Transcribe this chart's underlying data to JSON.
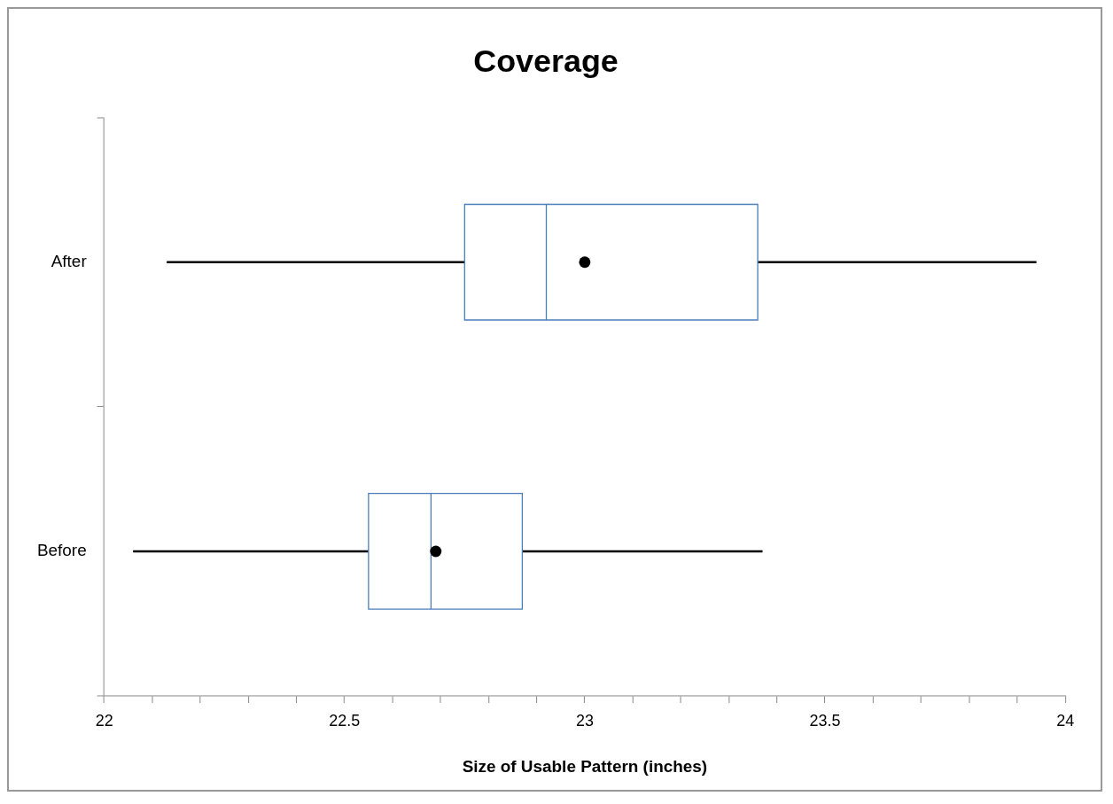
{
  "chart_data": {
    "type": "box",
    "title": "Coverage",
    "xlabel": "Size of Usable Pattern (inches)",
    "orientation": "horizontal",
    "categories": [
      "After",
      "Before"
    ],
    "color": "#4a7ebb",
    "boxes": [
      {
        "low": 22.13,
        "q1": 22.75,
        "median": 22.92,
        "q3": 23.36,
        "high": 23.94,
        "mean": 23.0
      },
      {
        "low": 22.06,
        "q1": 22.55,
        "median": 22.68,
        "q3": 22.87,
        "high": 23.37,
        "mean": 22.69
      }
    ],
    "xlim": [
      22,
      24
    ],
    "xticks": [
      22,
      {
        "value": 22.1,
        "label": null
      },
      {
        "value": 22.2,
        "label": null
      },
      {
        "value": 22.3,
        "label": null
      },
      {
        "value": 22.4,
        "label": null
      },
      22.5,
      {
        "value": 22.6,
        "label": null
      },
      {
        "value": 22.7,
        "label": null
      },
      {
        "value": 22.8,
        "label": null
      },
      {
        "value": 22.9,
        "label": null
      },
      23,
      {
        "value": 23.1,
        "label": null
      },
      {
        "value": 23.2,
        "label": null
      },
      {
        "value": 23.3,
        "label": null
      },
      {
        "value": 23.4,
        "label": null
      },
      23.5,
      {
        "value": 23.6,
        "label": null
      },
      {
        "value": 23.7,
        "label": null
      },
      {
        "value": 23.8,
        "label": null
      },
      {
        "value": 23.9,
        "label": null
      },
      24
    ],
    "grid": false,
    "legend": false
  }
}
